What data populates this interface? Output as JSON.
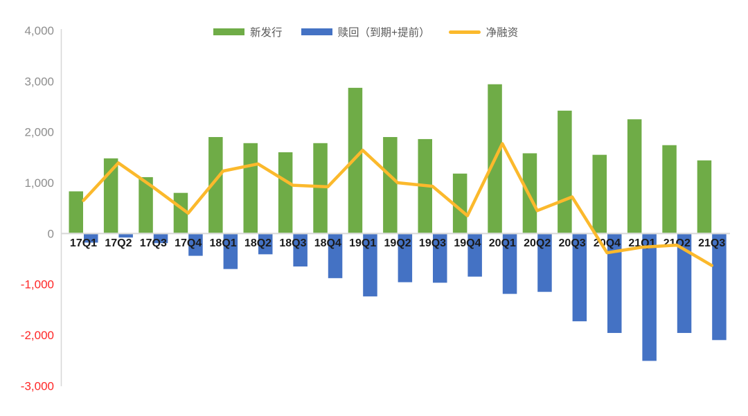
{
  "chart_data": {
    "type": "bar",
    "subtype": "clustered-bar-with-line-overlay",
    "title": "",
    "categories": [
      "17Q1",
      "17Q2",
      "17Q3",
      "17Q4",
      "18Q1",
      "18Q2",
      "18Q3",
      "18Q4",
      "19Q1",
      "19Q2",
      "19Q3",
      "19Q4",
      "20Q1",
      "20Q2",
      "20Q3",
      "20Q4",
      "21Q1",
      "21Q2",
      "21Q3"
    ],
    "series": [
      {
        "name": "新发行",
        "kind": "bar",
        "color": "#6FAC47",
        "values": [
          830,
          1480,
          1110,
          800,
          1900,
          1780,
          1600,
          1780,
          2870,
          1900,
          1860,
          1180,
          2940,
          1580,
          2420,
          1550,
          2250,
          1740,
          1440
        ]
      },
      {
        "name": "赎回（到期+提前）",
        "kind": "bar",
        "color": "#4472C4",
        "values": [
          -180,
          -80,
          -190,
          -440,
          -700,
          -410,
          -650,
          -880,
          -1240,
          -960,
          -970,
          -850,
          -1190,
          -1150,
          -1730,
          -1960,
          -2510,
          -1960,
          -2100
        ]
      },
      {
        "name": "净融资",
        "kind": "line",
        "color": "#FBB92C",
        "values": [
          650,
          1390,
          910,
          400,
          1230,
          1370,
          950,
          920,
          1640,
          1000,
          930,
          350,
          1770,
          450,
          720,
          -380,
          -270,
          -230,
          -630
        ]
      }
    ],
    "ylim": [
      -3000,
      4000
    ],
    "yticks": [
      {
        "value": 4000,
        "label": "4,000"
      },
      {
        "value": 3000,
        "label": "3,000"
      },
      {
        "value": 2000,
        "label": "2,000"
      },
      {
        "value": 1000,
        "label": "1,000"
      },
      {
        "value": 0,
        "label": "0"
      },
      {
        "value": -1000,
        "label": "-1,000"
      },
      {
        "value": -2000,
        "label": "-2,000"
      },
      {
        "value": -3000,
        "label": "-3,000"
      }
    ],
    "grid": false,
    "legend_position": "top",
    "colors": {
      "positive_tick": "#8E8E8E",
      "negative_tick": "#FF2626",
      "axis_line": "#D8D8D8",
      "x_label": "#1A1A1A"
    }
  }
}
